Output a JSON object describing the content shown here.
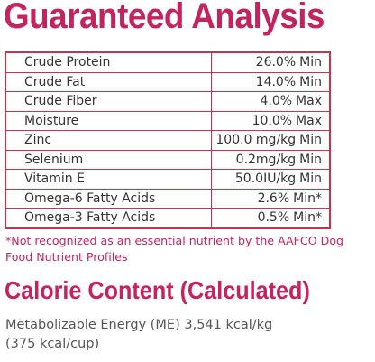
{
  "title": "Guaranteed Analysis",
  "table": {
    "rows": [
      [
        "Crude Protein",
        "26.0%",
        "Min"
      ],
      [
        "Crude Fat",
        "14.0%",
        "Min"
      ],
      [
        "Crude Fiber",
        "4.0%",
        "Max"
      ],
      [
        "Moisture",
        "10.0%",
        "Max"
      ],
      [
        "Zinc",
        "100.0 mg/kg",
        "Min"
      ],
      [
        "Selenium",
        "0.2mg/kg",
        "Min"
      ],
      [
        "Vitamin E",
        "50.0IU/kg",
        "Min"
      ],
      [
        "Omega-6 Fatty Acids",
        "2.6%",
        "Min*"
      ],
      [
        "Omega-3 Fatty Acids",
        "0.5%",
        "Min*"
      ]
    ]
  },
  "footnote": "*Not recognized as an essential nutrient by the AAFCO Dog Food Nutrient Profiles",
  "calorie": {
    "heading": "Calorie Content (Calculated)",
    "lines": [
      "Metabolizable Energy (ME) 3,541 kcal/kg",
      "(375 kcal/cup)"
    ]
  }
}
